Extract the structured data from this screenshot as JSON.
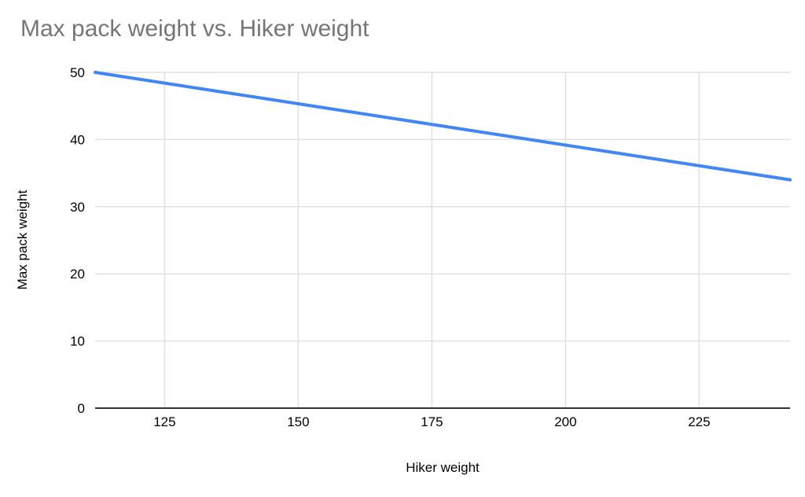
{
  "chart": {
    "title": "Max pack weight vs. Hiker weight",
    "x_axis_title": "Hiker weight",
    "y_axis_title": "Max pack weight"
  },
  "chart_data": {
    "type": "line",
    "title": "Max pack weight vs. Hiker weight",
    "xlabel": "Hiker weight",
    "ylabel": "Max pack weight",
    "x": [
      112,
      242
    ],
    "series": [
      {
        "name": "Max pack weight",
        "values": [
          50,
          34
        ]
      }
    ],
    "xlim": [
      112,
      242
    ],
    "ylim": [
      0,
      50
    ],
    "x_ticks": [
      125,
      150,
      175,
      200,
      225
    ],
    "y_ticks": [
      0,
      10,
      20,
      30,
      40,
      50
    ],
    "grid": true,
    "legend_position": "none",
    "colors": {
      "series": "#4285f4",
      "gridline": "#e0e0e0",
      "baseline": "#333333",
      "title": "#757575",
      "tick_label": "#000000"
    }
  }
}
